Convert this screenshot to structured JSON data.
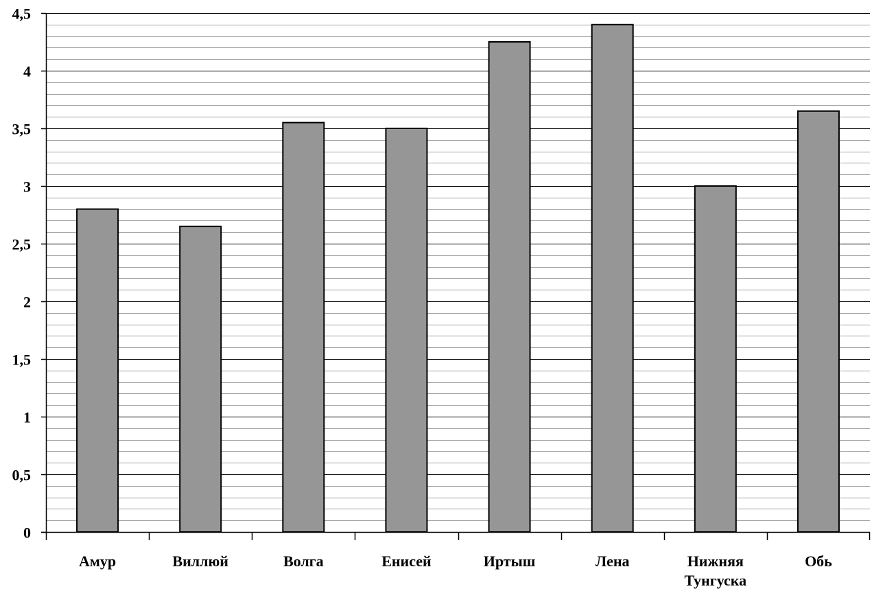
{
  "chart_data": {
    "type": "bar",
    "title": "",
    "xlabel": "",
    "ylabel": "",
    "categories": [
      "Амур",
      "Виллюй",
      "Волга",
      "Енисей",
      "Иртыш",
      "Лена",
      "Нижняя Тунгуска",
      "Обь"
    ],
    "category_lines": [
      [
        "Амур"
      ],
      [
        "Виллюй"
      ],
      [
        "Волга"
      ],
      [
        "Енисей"
      ],
      [
        "Иртыш"
      ],
      [
        "Лена"
      ],
      [
        "Нижняя",
        "Тунгуска"
      ],
      [
        "Обь"
      ]
    ],
    "values": [
      2.8,
      2.65,
      3.55,
      3.5,
      4.25,
      4.4,
      3.0,
      3.65
    ],
    "ylim": [
      0,
      4.5
    ],
    "y_ticks": [
      0,
      0.5,
      1,
      1.5,
      2,
      2.5,
      3,
      3.5,
      4,
      4.5
    ],
    "y_tick_labels": [
      "0",
      "0,5",
      "1",
      "1,5",
      "2",
      "2,5",
      "3",
      "3,5",
      "4",
      "4,5"
    ],
    "minor_grid_step": 0.1,
    "grid": true,
    "legend": "none",
    "bar_color": "#969696",
    "bar_stroke": "#000000",
    "grid_color": "#808080"
  }
}
